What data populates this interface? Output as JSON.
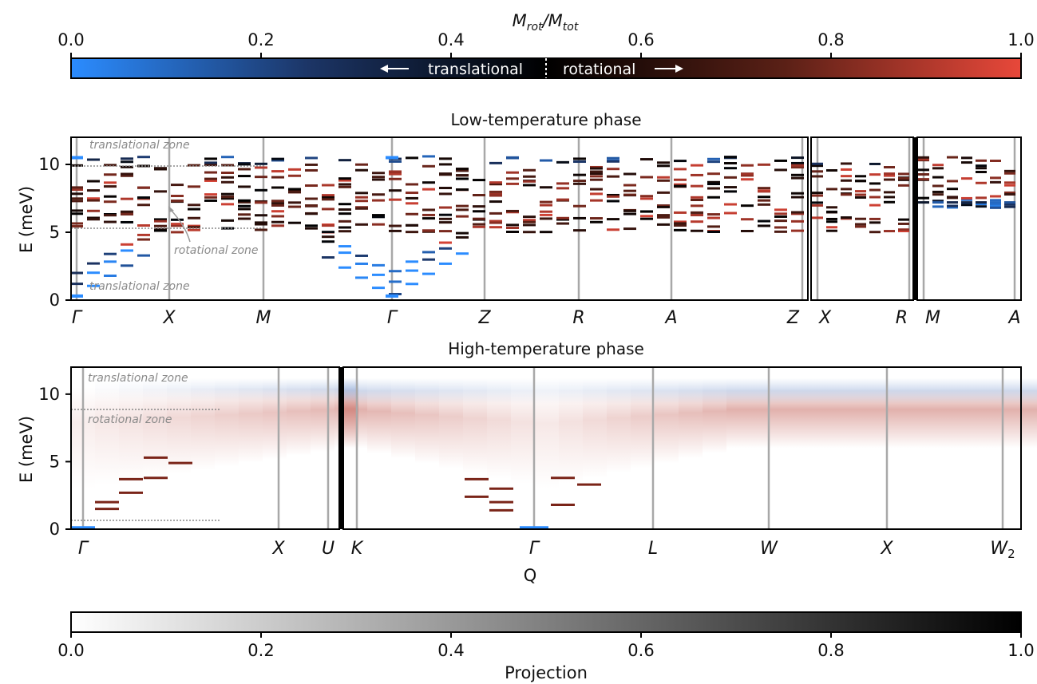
{
  "colorbar_top": {
    "label_main": "M",
    "label_sub1": "rot",
    "label_slash": "/M",
    "label_sub2": "tot",
    "ticks": [
      "0.0",
      "0.2",
      "0.4",
      "0.6",
      "0.8",
      "1.0"
    ],
    "left_text": "translational",
    "right_text": "rotational",
    "colors": [
      "#2b8cff",
      "#1c2a44",
      "#000000",
      "#4a1c14",
      "#e8483a"
    ]
  },
  "colorbar_bottom": {
    "label": "Projection",
    "ticks": [
      "0.0",
      "0.2",
      "0.4",
      "0.6",
      "0.8",
      "1.0"
    ],
    "colors": [
      "#ffffff",
      "#000000"
    ]
  },
  "chart_data": [
    {
      "type": "scatter",
      "title": "Low-temperature phase",
      "ylabel": "E (meV)",
      "ylim": [
        0,
        12
      ],
      "yticks": [
        "0",
        "5",
        "10"
      ],
      "x_labels": [
        {
          "main": "Γ",
          "sub": ""
        },
        {
          "main": "X",
          "sub": ""
        },
        {
          "main": "M",
          "sub": ""
        },
        {
          "main": "Γ",
          "sub": ""
        },
        {
          "main": "Z",
          "sub": ""
        },
        {
          "main": "R",
          "sub": ""
        },
        {
          "main": "A",
          "sub": ""
        },
        {
          "main": "Z",
          "sub": ""
        },
        {
          "main": "X",
          "sub": ""
        },
        {
          "main": "R",
          "sub": ""
        },
        {
          "main": "M",
          "sub": ""
        },
        {
          "main": "A",
          "sub": ""
        }
      ],
      "annotations": {
        "translational_top": "translational zone",
        "rotational": "rotational zone",
        "translational_bottom": "translational zone"
      },
      "zone_lines": [
        9.9,
        5.3
      ],
      "color_value": "M_rot/M_tot"
    },
    {
      "type": "heatmap",
      "title": "High-temperature phase",
      "ylabel": "E (meV)",
      "xlabel": "Q",
      "ylim": [
        0,
        12
      ],
      "yticks": [
        "0",
        "5",
        "10"
      ],
      "x_labels": [
        {
          "main": "Γ",
          "sub": ""
        },
        {
          "main": "X",
          "sub": ""
        },
        {
          "main": "U",
          "sub": ""
        },
        {
          "main": "K",
          "sub": ""
        },
        {
          "main": "Γ",
          "sub": ""
        },
        {
          "main": "L",
          "sub": ""
        },
        {
          "main": "W",
          "sub": ""
        },
        {
          "main": "X",
          "sub": ""
        },
        {
          "main": "W",
          "sub": "2"
        }
      ],
      "annotations": {
        "translational": "translational zone",
        "rotational": "rotational zone"
      },
      "zone_lines": [
        8.9,
        0.7
      ],
      "color_value": "Projection"
    }
  ]
}
